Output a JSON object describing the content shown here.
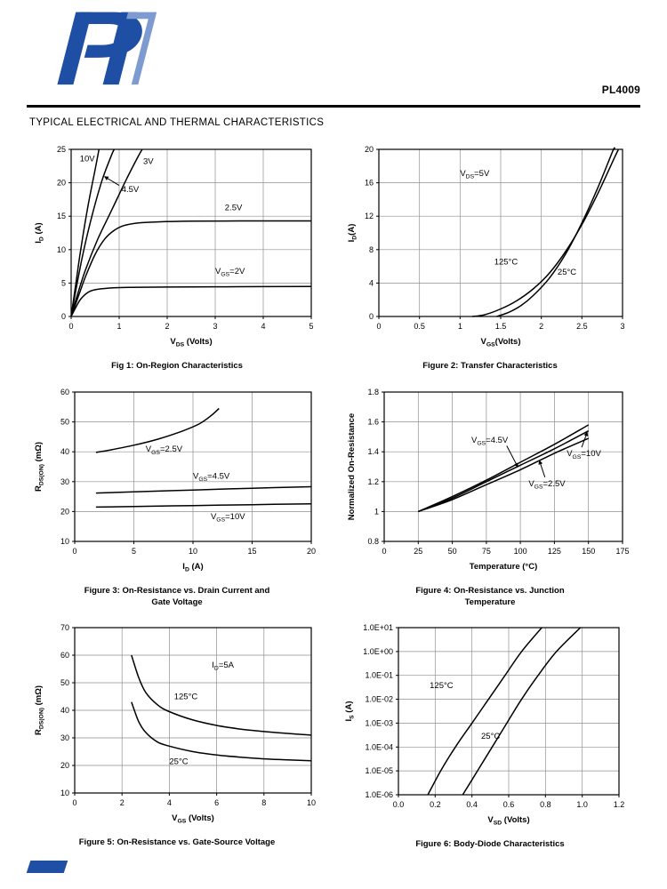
{
  "header": {
    "part_number": "PL4009",
    "section_title": "TYPICAL ELECTRICAL AND THERMAL CHARACTERISTICS",
    "brand_color": "#1e4fa5"
  },
  "chart_data": [
    {
      "id": "fig1",
      "type": "line",
      "caption": "Fig 1: On-Region Characteristics",
      "x_axis": {
        "label": "V~DS~ (Volts)",
        "min": 0,
        "max": 5,
        "ticks": [
          0,
          1,
          2,
          3,
          4,
          5
        ],
        "tick_labels": [
          "0",
          "1",
          "2",
          "3",
          "4",
          "5"
        ]
      },
      "y_axis": {
        "label": "I~D~ (A)",
        "min": 0,
        "max": 25,
        "ticks": [
          0,
          5,
          10,
          15,
          20,
          25
        ],
        "tick_labels": [
          "0",
          "5",
          "10",
          "15",
          "20",
          "25"
        ],
        "scale": "linear"
      },
      "grid": true,
      "series": [
        {
          "name": "VGS=10V",
          "points": [
            [
              0,
              0
            ],
            [
              0.1,
              5
            ],
            [
              0.2,
              10
            ],
            [
              0.35,
              16.5
            ],
            [
              0.5,
              22
            ],
            [
              0.58,
              25
            ]
          ]
        },
        {
          "name": "VGS=4.5V",
          "points": [
            [
              0,
              0
            ],
            [
              0.1,
              4
            ],
            [
              0.25,
              9.5
            ],
            [
              0.45,
              15.5
            ],
            [
              0.65,
              20.5
            ],
            [
              0.85,
              24.3
            ],
            [
              0.9,
              25
            ]
          ]
        },
        {
          "name": "VGS=3V",
          "points": [
            [
              0,
              0
            ],
            [
              0.12,
              3
            ],
            [
              0.3,
              7
            ],
            [
              0.55,
              11.5
            ],
            [
              0.85,
              16
            ],
            [
              1.15,
              20.5
            ],
            [
              1.4,
              24
            ],
            [
              1.48,
              25
            ]
          ]
        },
        {
          "name": "VGS=2.5V",
          "points": [
            [
              0,
              0
            ],
            [
              0.15,
              3
            ],
            [
              0.3,
              6
            ],
            [
              0.5,
              9.3
            ],
            [
              0.7,
              11.6
            ],
            [
              0.9,
              12.9
            ],
            [
              1.1,
              13.6
            ],
            [
              1.4,
              14
            ],
            [
              1.8,
              14.15
            ],
            [
              2.5,
              14.25
            ],
            [
              3.5,
              14.3
            ],
            [
              5,
              14.3
            ]
          ]
        },
        {
          "name": "VGS=2V",
          "points": [
            [
              0,
              0
            ],
            [
              0.1,
              1.4
            ],
            [
              0.2,
              2.6
            ],
            [
              0.35,
              3.6
            ],
            [
              0.5,
              4
            ],
            [
              0.8,
              4.25
            ],
            [
              1.2,
              4.35
            ],
            [
              2,
              4.4
            ],
            [
              3.5,
              4.45
            ],
            [
              5,
              4.5
            ]
          ]
        }
      ],
      "annotations": [
        {
          "text": "10V",
          "x": 0.18,
          "y": 23.2
        },
        {
          "text": "3V",
          "x": 1.5,
          "y": 22.8
        },
        {
          "text": "4.5V",
          "x": 1.05,
          "y": 18.6,
          "arrow_from": [
            1.0,
            19.6
          ],
          "arrow_to": [
            0.7,
            20.9
          ]
        },
        {
          "text": "2.5V",
          "x": 3.2,
          "y": 15.9
        },
        {
          "text": "V~GS~=2V",
          "x": 3.0,
          "y": 6.4
        }
      ]
    },
    {
      "id": "fig2",
      "type": "line",
      "caption": "Figure 2: Transfer Characteristics",
      "x_axis": {
        "label": "V~GS~(Volts)",
        "min": 0,
        "max": 3,
        "ticks": [
          0,
          0.5,
          1,
          1.5,
          2,
          2.5,
          3
        ],
        "tick_labels": [
          "0",
          "0.5",
          "1",
          "1.5",
          "2",
          "2.5",
          "3"
        ]
      },
      "y_axis": {
        "label": "I~D~(A)",
        "min": 0,
        "max": 20,
        "ticks": [
          0,
          4,
          8,
          12,
          16,
          20
        ],
        "tick_labels": [
          "0",
          "4",
          "8",
          "12",
          "16",
          "20"
        ],
        "scale": "linear"
      },
      "grid": true,
      "series": [
        {
          "name": "125°C",
          "points": [
            [
              1.15,
              0
            ],
            [
              1.3,
              0.2
            ],
            [
              1.5,
              0.9
            ],
            [
              1.7,
              1.9
            ],
            [
              1.9,
              3.3
            ],
            [
              2.1,
              5.2
            ],
            [
              2.3,
              7.8
            ],
            [
              2.5,
              11
            ],
            [
              2.7,
              14.8
            ],
            [
              2.9,
              19
            ],
            [
              2.95,
              20
            ]
          ]
        },
        {
          "name": "25°C",
          "points": [
            [
              1.45,
              0
            ],
            [
              1.6,
              0.5
            ],
            [
              1.75,
              1.3
            ],
            [
              1.9,
              2.5
            ],
            [
              2.1,
              4.6
            ],
            [
              2.3,
              7.5
            ],
            [
              2.5,
              11.2
            ],
            [
              2.7,
              15.5
            ],
            [
              2.88,
              19.8
            ],
            [
              2.9,
              20
            ]
          ]
        }
      ],
      "annotations": [
        {
          "text": "V~DS~=5V",
          "x": 1.0,
          "y": 16.8
        },
        {
          "text": "125°C",
          "x": 1.42,
          "y": 6.2
        },
        {
          "text": "25°C",
          "x": 2.2,
          "y": 5.0
        }
      ]
    },
    {
      "id": "fig3",
      "type": "line",
      "caption": "Figure 3: On-Resistance vs. Drain Current and\nGate Voltage",
      "x_axis": {
        "label": "I~D~ (A)",
        "min": 0,
        "max": 20,
        "ticks": [
          0,
          5,
          10,
          15,
          20
        ],
        "tick_labels": [
          "0",
          "5",
          "10",
          "15",
          "20"
        ]
      },
      "y_axis": {
        "label": "R~DS(ON)~ (mΩ)",
        "min": 10,
        "max": 60,
        "ticks": [
          10,
          20,
          30,
          40,
          50,
          60
        ],
        "tick_labels": [
          "10",
          "20",
          "30",
          "40",
          "50",
          "60"
        ],
        "scale": "linear"
      },
      "grid": true,
      "series": [
        {
          "name": "VGS=2.5V",
          "points": [
            [
              1.8,
              39.8
            ],
            [
              3,
              40.6
            ],
            [
              5,
              42.2
            ],
            [
              7,
              44.2
            ],
            [
              9,
              46.8
            ],
            [
              10.5,
              49.3
            ],
            [
              11.5,
              52
            ],
            [
              12.2,
              54.5
            ]
          ]
        },
        {
          "name": "VGS=4.5V",
          "points": [
            [
              1.8,
              26.2
            ],
            [
              5,
              26.6
            ],
            [
              10,
              27.2
            ],
            [
              15,
              27.8
            ],
            [
              20,
              28.3
            ]
          ]
        },
        {
          "name": "VGS=10V",
          "points": [
            [
              1.8,
              21.5
            ],
            [
              5,
              21.7
            ],
            [
              10,
              22
            ],
            [
              15,
              22.3
            ],
            [
              20,
              22.6
            ]
          ]
        }
      ],
      "annotations": [
        {
          "text": "V~GS~=2.5V",
          "x": 6.0,
          "y": 40
        },
        {
          "text": "V~GS~=4.5V",
          "x": 10.0,
          "y": 31
        },
        {
          "text": "V~GS~=10V",
          "x": 11.5,
          "y": 17.5
        }
      ]
    },
    {
      "id": "fig4",
      "type": "line",
      "caption": "Figure 4: On-Resistance vs. Junction\nTemperature",
      "x_axis": {
        "label": "Temperature (°C)",
        "min": 0,
        "max": 175,
        "ticks": [
          0,
          25,
          50,
          75,
          100,
          125,
          150,
          175
        ],
        "tick_labels": [
          "0",
          "25",
          "50",
          "75",
          "100",
          "125",
          "150",
          "175"
        ]
      },
      "y_axis": {
        "label": "Normalized On-Resistance",
        "min": 0.8,
        "max": 1.8,
        "ticks": [
          0.8,
          1,
          1.2,
          1.4,
          1.6,
          1.8
        ],
        "tick_labels": [
          "0.8",
          "1",
          "1.2",
          "1.4",
          "1.6",
          "1.8"
        ],
        "scale": "linear"
      },
      "grid": true,
      "series": [
        {
          "name": "VGS=4.5V",
          "points": [
            [
              25,
              1
            ],
            [
              50,
              1.1
            ],
            [
              75,
              1.21
            ],
            [
              100,
              1.33
            ],
            [
              125,
              1.45
            ],
            [
              150,
              1.58
            ]
          ]
        },
        {
          "name": "VGS=10V",
          "points": [
            [
              25,
              1
            ],
            [
              50,
              1.09
            ],
            [
              75,
              1.2
            ],
            [
              100,
              1.31
            ],
            [
              125,
              1.42
            ],
            [
              150,
              1.54
            ]
          ]
        },
        {
          "name": "VGS=2.5V",
          "points": [
            [
              25,
              1
            ],
            [
              50,
              1.08
            ],
            [
              75,
              1.18
            ],
            [
              100,
              1.28
            ],
            [
              125,
              1.39
            ],
            [
              150,
              1.49
            ]
          ]
        }
      ],
      "annotations": [
        {
          "text": "V~GS~=4.5V",
          "x": 64,
          "y": 1.46,
          "arrow_from": [
            90,
            1.44
          ],
          "arrow_to": [
            98,
            1.3
          ]
        },
        {
          "text": "V~GS~=10V",
          "x": 134,
          "y": 1.37,
          "arrow_from": [
            145,
            1.43
          ],
          "arrow_to": [
            149,
            1.53
          ]
        },
        {
          "text": "V~GS~=2.5V",
          "x": 106,
          "y": 1.17,
          "arrow_from": [
            118,
            1.23
          ],
          "arrow_to": [
            114,
            1.34
          ]
        }
      ]
    },
    {
      "id": "fig5",
      "type": "line",
      "caption": "Figure 5: On-Resistance vs. Gate-Source Voltage",
      "x_axis": {
        "label": "V~GS~ (Volts)",
        "min": 0,
        "max": 10,
        "ticks": [
          0,
          2,
          4,
          6,
          8,
          10
        ],
        "tick_labels": [
          "0",
          "2",
          "4",
          "6",
          "8",
          "10"
        ]
      },
      "y_axis": {
        "label": "R~DS(ON)~ (mΩ)",
        "min": 10,
        "max": 70,
        "ticks": [
          10,
          20,
          30,
          40,
          50,
          60,
          70
        ],
        "tick_labels": [
          "10",
          "20",
          "30",
          "40",
          "50",
          "60",
          "70"
        ],
        "scale": "linear"
      },
      "grid": true,
      "series": [
        {
          "name": "125°C",
          "points": [
            [
              2.4,
              60
            ],
            [
              2.7,
              52
            ],
            [
              3,
              46.5
            ],
            [
              3.5,
              42
            ],
            [
              4,
              39.5
            ],
            [
              5,
              36.5
            ],
            [
              6,
              34.5
            ],
            [
              7,
              33.2
            ],
            [
              8,
              32.3
            ],
            [
              9,
              31.6
            ],
            [
              10,
              31
            ]
          ]
        },
        {
          "name": "25°C",
          "points": [
            [
              2.4,
              43
            ],
            [
              2.7,
              36
            ],
            [
              3,
              32
            ],
            [
              3.5,
              28.5
            ],
            [
              4,
              27
            ],
            [
              5,
              25
            ],
            [
              6,
              23.8
            ],
            [
              7,
              23
            ],
            [
              8,
              22.4
            ],
            [
              9,
              22
            ],
            [
              10,
              21.7
            ]
          ]
        }
      ],
      "annotations": [
        {
          "text": "I~D~=5A",
          "x": 5.8,
          "y": 55.5
        },
        {
          "text": "125°C",
          "x": 4.2,
          "y": 44
        },
        {
          "text": "25°C",
          "x": 4.0,
          "y": 20.5
        }
      ]
    },
    {
      "id": "fig6",
      "type": "line",
      "caption": "Figure 6: Body-Diode Characteristics",
      "x_axis": {
        "label": "V~SD~ (Volts)",
        "min": 0,
        "max": 1.2,
        "ticks": [
          0,
          0.2,
          0.4,
          0.6,
          0.8,
          1,
          1.2
        ],
        "tick_labels": [
          "0.0",
          "0.2",
          "0.4",
          "0.6",
          "0.8",
          "1.0",
          "1.2"
        ]
      },
      "y_axis": {
        "label": "I~S~ (A)",
        "min": 1e-06,
        "max": 10,
        "ticks": [
          10,
          1,
          0.1,
          0.01,
          0.001,
          0.0001,
          1e-05,
          1e-06
        ],
        "tick_labels": [
          "1.0E+01",
          "1.0E+00",
          "1.0E-01",
          "1.0E-02",
          "1.0E-03",
          "1.0E-04",
          "1.0E-05",
          "1.0E-06"
        ],
        "scale": "log"
      },
      "grid": true,
      "series": [
        {
          "name": "125°C",
          "points": [
            [
              0.16,
              1e-06
            ],
            [
              0.23,
              1e-05
            ],
            [
              0.31,
              0.0001
            ],
            [
              0.4,
              0.001
            ],
            [
              0.49,
              0.01
            ],
            [
              0.58,
              0.1
            ],
            [
              0.67,
              1
            ],
            [
              0.78,
              10
            ]
          ]
        },
        {
          "name": "25°C",
          "points": [
            [
              0.35,
              1e-06
            ],
            [
              0.43,
              1e-05
            ],
            [
              0.51,
              0.0001
            ],
            [
              0.59,
              0.001
            ],
            [
              0.67,
              0.01
            ],
            [
              0.76,
              0.1
            ],
            [
              0.86,
              1
            ],
            [
              0.99,
              10
            ]
          ]
        }
      ],
      "annotations": [
        {
          "text": "125°C",
          "x": 0.17,
          "y": 0.03
        },
        {
          "text": "25°C",
          "x": 0.45,
          "y": 0.00022
        }
      ]
    }
  ]
}
